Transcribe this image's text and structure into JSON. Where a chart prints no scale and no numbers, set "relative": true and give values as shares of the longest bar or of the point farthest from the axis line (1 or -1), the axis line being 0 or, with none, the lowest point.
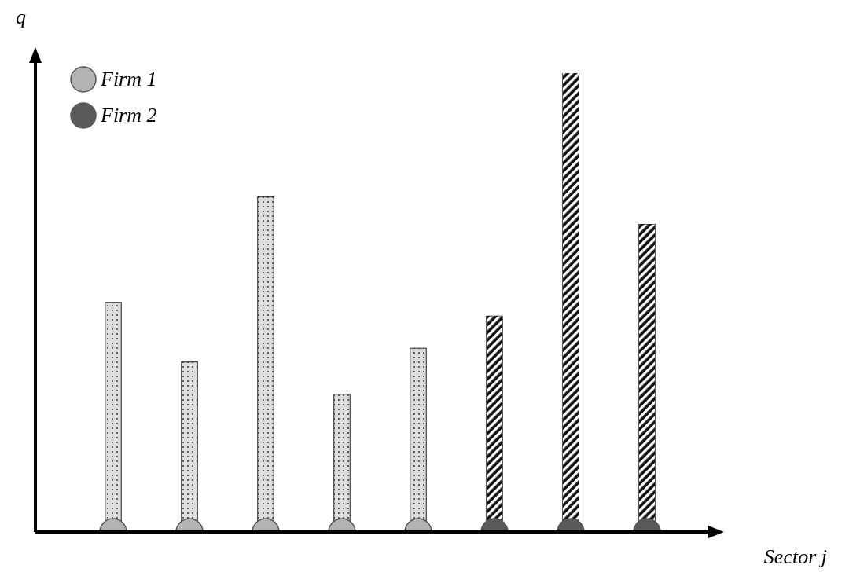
{
  "chart_data": {
    "type": "bar",
    "relative": true,
    "xlabel": "Sector j",
    "ylabel": "q",
    "categories": [
      null,
      null,
      null,
      null,
      null,
      null,
      null,
      null
    ],
    "legend": "top left",
    "stacked": true,
    "series": [
      {
        "name": "Firm 1",
        "color": "#b3b3b3",
        "values": [
          0.5,
          0.37,
          0.73,
          0.3,
          0.4,
          null,
          null,
          null
        ]
      },
      {
        "name": "Firm 2",
        "color": "#5a5a5a",
        "values": [
          null,
          null,
          null,
          null,
          null,
          0.47,
          1,
          0.67
        ]
      }
    ]
  }
}
